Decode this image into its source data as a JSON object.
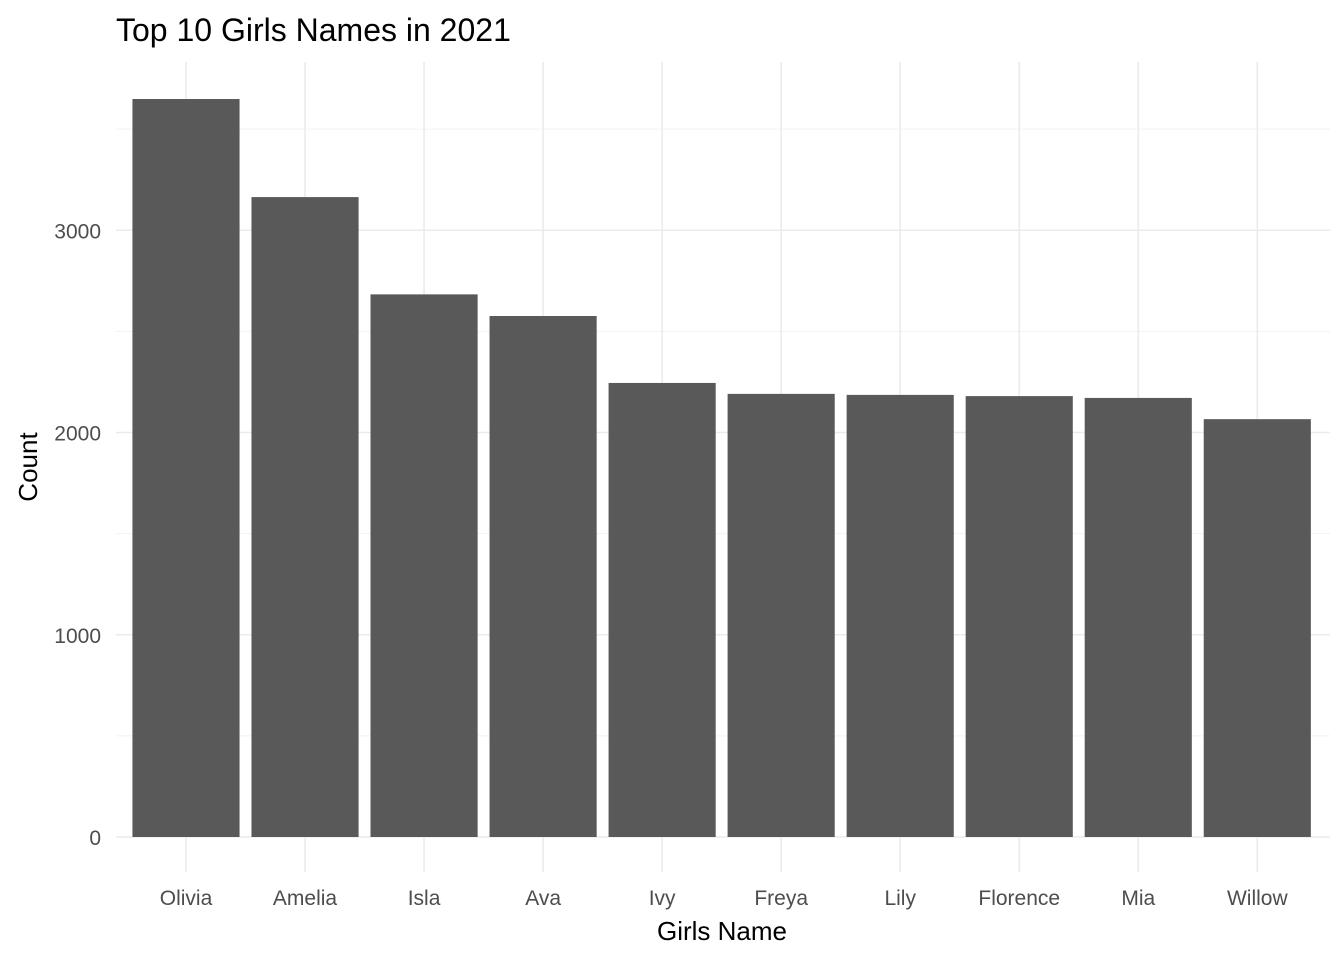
{
  "chart_data": {
    "type": "bar",
    "title": "Top 10 Girls Names in 2021",
    "xlabel": "Girls Name",
    "ylabel": "Count",
    "categories": [
      "Olivia",
      "Amelia",
      "Isla",
      "Ava",
      "Ivy",
      "Freya",
      "Lily",
      "Florence",
      "Mia",
      "Willow"
    ],
    "values": [
      3649,
      3164,
      2683,
      2576,
      2245,
      2191,
      2186,
      2180,
      2171,
      2066
    ],
    "ylim": [
      0,
      3649
    ],
    "yticks": [
      "0",
      "1000",
      "2000",
      "3000"
    ],
    "grid": true,
    "bar_color": "#595959"
  }
}
